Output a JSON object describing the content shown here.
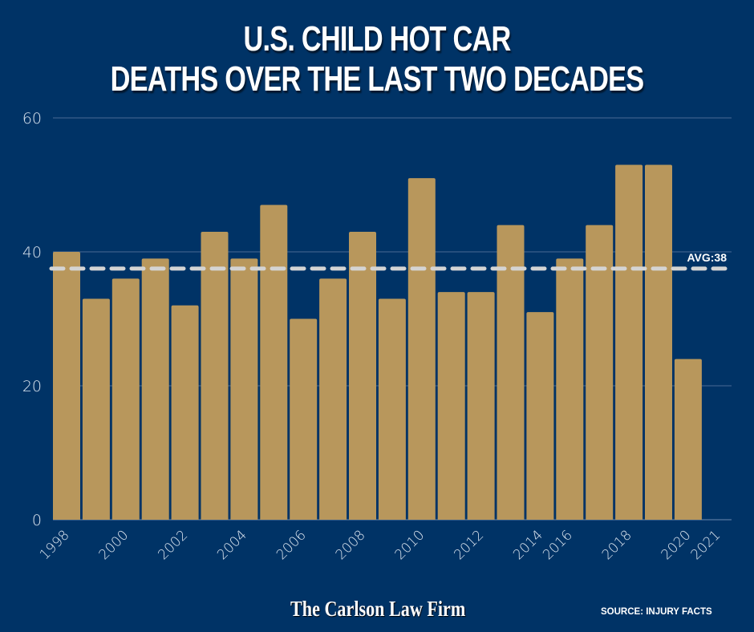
{
  "title_line1": "U.S. CHILD HOT CAR",
  "title_line2": "DEATHS OVER THE LAST TWO DECADES",
  "brand": "The Carlson Law Firm",
  "source": "SOURCE: INJURY FACTS",
  "colors": {
    "background": "#003366",
    "bar": "#b8975c",
    "grid": "#4a6a94",
    "avg_line": "#d4d4d4",
    "text": "#ffffff"
  },
  "chart_data": {
    "type": "bar",
    "title": "U.S. CHILD HOT CAR DEATHS OVER THE LAST TWO DECADES",
    "xlabel": "",
    "ylabel": "",
    "ylim": [
      0,
      60
    ],
    "yticks": [
      0,
      20,
      40,
      60
    ],
    "grid": true,
    "categories": [
      "1998",
      "1999",
      "2000",
      "2001",
      "2002",
      "2003",
      "2004",
      "2005",
      "2006",
      "2007",
      "2008",
      "2009",
      "2010",
      "2011",
      "2012",
      "2013",
      "2014",
      "2016",
      "2017",
      "2018",
      "2019",
      "2020",
      "2021"
    ],
    "values": [
      40,
      33,
      36,
      39,
      32,
      43,
      39,
      47,
      30,
      36,
      43,
      33,
      51,
      34,
      34,
      44,
      31,
      39,
      44,
      53,
      53,
      24,
      null
    ],
    "visible_xtick_labels": [
      "1998",
      "2000",
      "2002",
      "2004",
      "2006",
      "2008",
      "2010",
      "2012",
      "2014",
      "2016",
      "2018",
      "2020",
      "2021"
    ],
    "average": {
      "value": 37.5,
      "label": "AVG:38"
    }
  }
}
